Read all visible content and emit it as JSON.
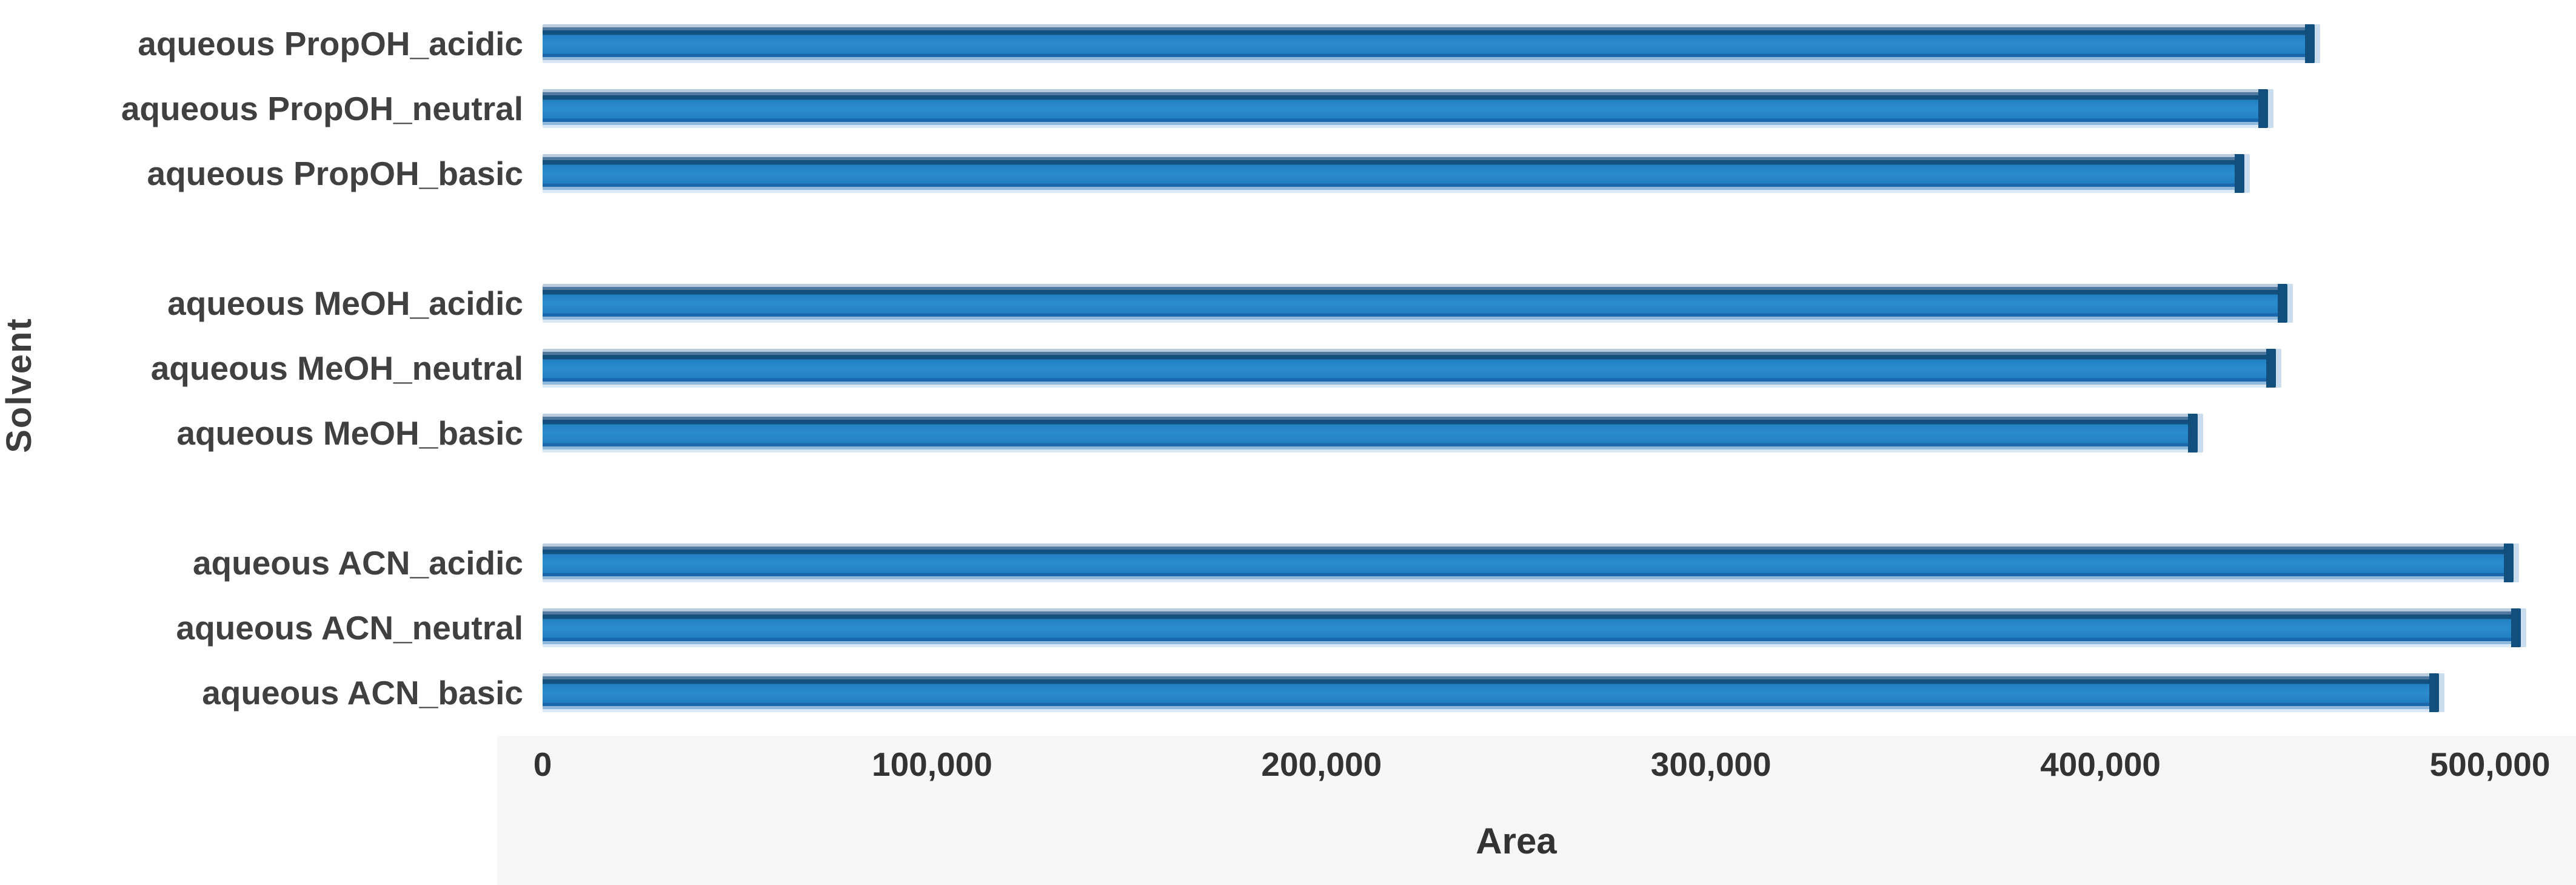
{
  "chart_data": {
    "type": "bar",
    "orientation": "horizontal",
    "xlabel": "Area",
    "ylabel": "Solvent",
    "xlim": [
      0,
      521000
    ],
    "grid": "off",
    "legend": "none",
    "ticks": [
      {
        "label": "0",
        "value": 0
      },
      {
        "label": "100,000",
        "value": 100000
      },
      {
        "label": "200,000",
        "value": 200000
      },
      {
        "label": "300,000",
        "value": 300000
      },
      {
        "label": "400,000",
        "value": 400000
      },
      {
        "label": "500,000",
        "value": 500000
      }
    ],
    "groups": [
      {
        "name": "PropOH",
        "bars": [
          {
            "label": "aqueous PropOH_acidic",
            "value": 455000
          },
          {
            "label": "aqueous PropOH_neutral",
            "value": 443000
          },
          {
            "label": "aqueous PropOH_basic",
            "value": 437000
          }
        ]
      },
      {
        "name": "MeOH",
        "bars": [
          {
            "label": "aqueous MeOH_acidic",
            "value": 448000
          },
          {
            "label": "aqueous MeOH_neutral",
            "value": 445000
          },
          {
            "label": "aqueous MeOH_basic",
            "value": 425000
          }
        ]
      },
      {
        "name": "ACN",
        "bars": [
          {
            "label": "aqueous ACN_acidic",
            "value": 506000
          },
          {
            "label": "aqueous ACN_neutral",
            "value": 508000
          },
          {
            "label": "aqueous ACN_basic",
            "value": 487000
          }
        ]
      }
    ],
    "colors": {
      "bar_fill": "#2383c5",
      "bar_ridge_dark": "#13507d",
      "bar_strip_light": "#d9e8f4",
      "axis_band": "#f6f6f6",
      "text": "#3d3d3d"
    }
  }
}
